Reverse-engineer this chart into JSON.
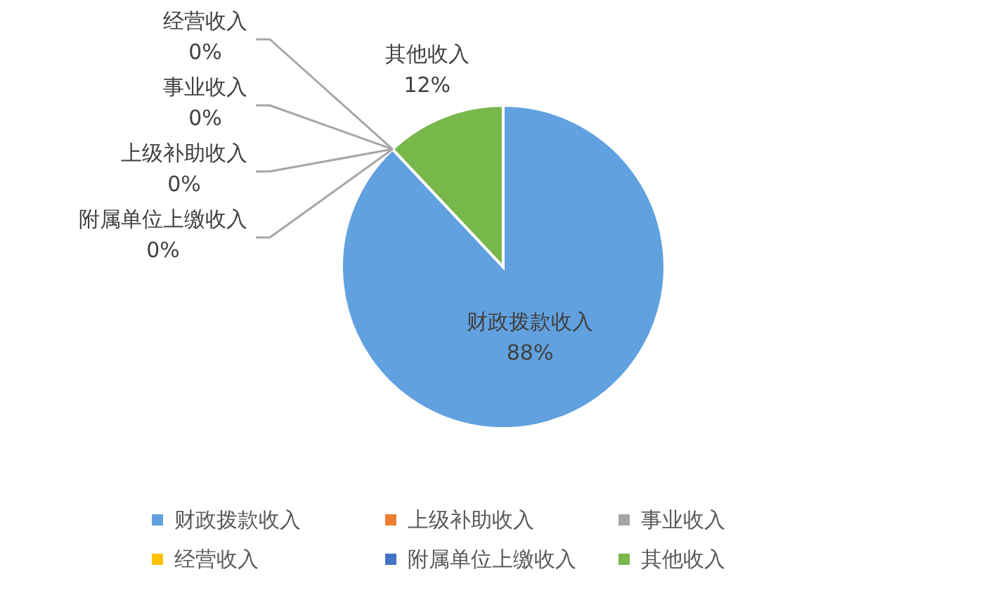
{
  "chart_data": {
    "type": "pie",
    "categories": [
      "财政拨款收入",
      "上级补助收入",
      "事业收入",
      "经营收入",
      "附属单位上缴收入",
      "其他收入"
    ],
    "values": [
      88,
      0,
      0,
      0,
      0,
      12
    ],
    "value_labels": [
      "88%",
      "0%",
      "0%",
      "0%",
      "0%",
      "12%"
    ],
    "colors": [
      "#61a1df",
      "#ed7d31",
      "#a5a5a5",
      "#ffc000",
      "#4472c4",
      "#78b74a"
    ],
    "legend": "bottom"
  }
}
